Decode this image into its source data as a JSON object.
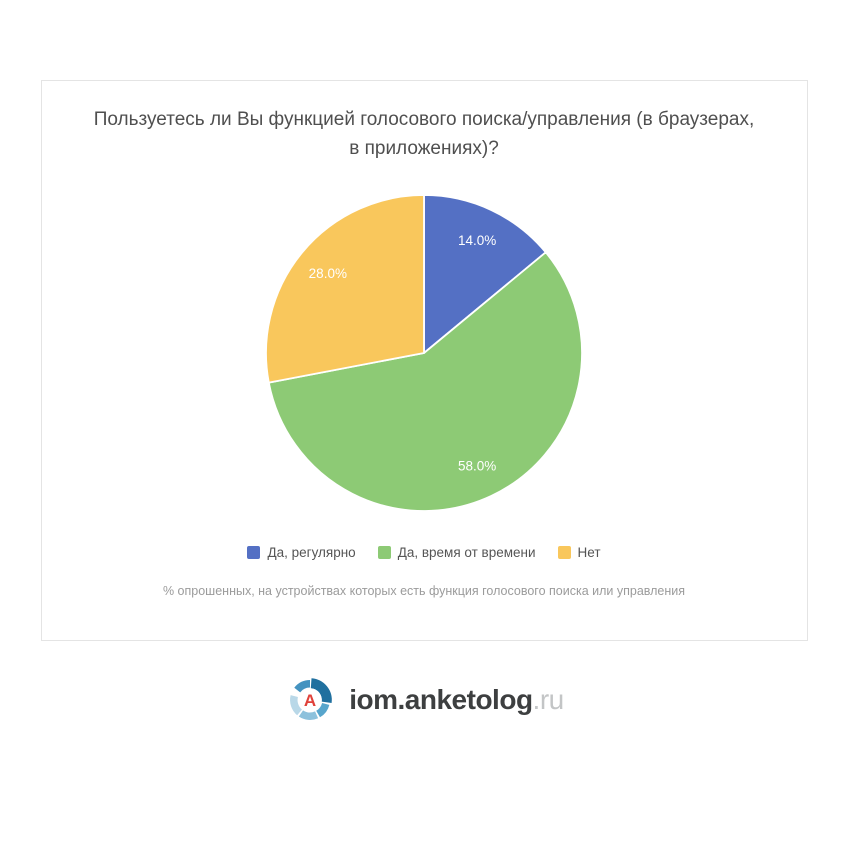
{
  "page": {
    "background": "#ffffff",
    "card_border_color": "#e4e4e4"
  },
  "card": {
    "title_line1": "Пользуетесь ли Вы функцией голосового поиска/управления (в браузерах,",
    "title_line2": "в приложениях)?",
    "footnote": "% опрошенных, на устройствах которых есть функция голосового поиска или управления"
  },
  "chart_data": {
    "type": "pie",
    "title": "Пользуетесь ли Вы функцией голосового поиска/управления (в браузерах, в приложениях)?",
    "series": [
      {
        "name": "Да, регулярно",
        "value": 14.0,
        "label": "14.0%",
        "color": "#5470c4"
      },
      {
        "name": "Да, время от времени",
        "value": 58.0,
        "label": "58.0%",
        "color": "#8dca75"
      },
      {
        "name": "Нет",
        "value": 28.0,
        "label": "28.0%",
        "color": "#f9c75c"
      }
    ],
    "start_angle": "top",
    "direction": "clockwise",
    "slice_label_color": "#ffffff",
    "slice_separator_color": "#ffffff",
    "legend_position": "bottom",
    "legend_text_color": "#555555",
    "footnote": "% опрошенных, на устройствах которых есть функция голосового поиска или управления"
  },
  "brand": {
    "domain": "iom.anketolog",
    "tld": ".ru",
    "domain_color": "#3d3f40",
    "tld_color": "#c3c5c6",
    "letter": "А",
    "letter_color": "#e0413a",
    "icon_ring_colors": [
      "#4493c0",
      "#20709f",
      "#57a5cc",
      "#8cc1dc",
      "#b9d8e8"
    ]
  }
}
